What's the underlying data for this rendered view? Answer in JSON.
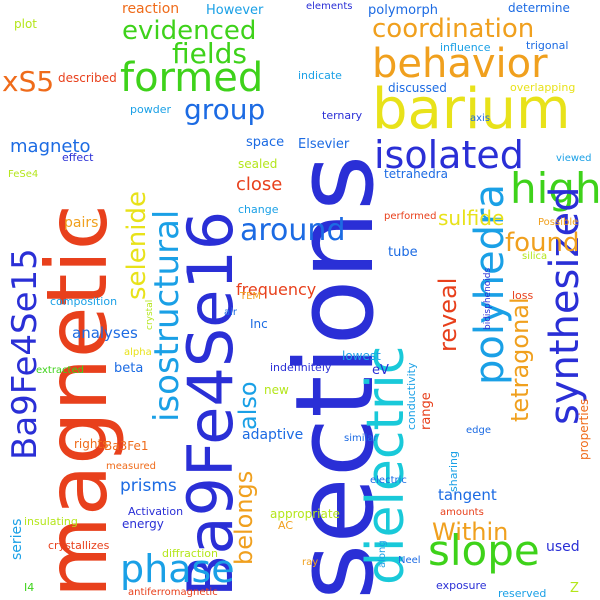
{
  "palette": {
    "red": "#e8401c",
    "orange": "#ef6b1a",
    "amber": "#f0a01e",
    "yellow": "#e8e21a",
    "lime": "#b4e61a",
    "green": "#3ed21a",
    "cyan": "#19c9d9",
    "sky": "#1aa0e6",
    "blue": "#1c6be3",
    "indigo": "#2a2fd6"
  },
  "words": [
    "sections",
    "magnetic",
    "Ba9Fe4Se16",
    "barium",
    "dielectric",
    "formed",
    "behavior",
    "isolated",
    "high",
    "evidenced",
    "coordination",
    "polyhedra",
    "synthesized",
    "slope",
    "Ba9Fe4Se15",
    "isostructural",
    "phase",
    "fields",
    "group",
    "xS5",
    "selenide",
    "around",
    "found",
    "tetragonal",
    "reveal",
    "also",
    "belongs",
    "Within",
    "sulfide",
    "magneto",
    "plot",
    "reaction",
    "However",
    "elements",
    "determine",
    "polymorph",
    "influence",
    "trigonal",
    "described",
    "discussed",
    "overlapping",
    "indicate",
    "axis",
    "powder",
    "ternary",
    "space",
    "Elsevier",
    "effect",
    "FeSe4",
    "viewed",
    "sealed",
    "close",
    "tetrahedra",
    "change",
    "frequency",
    "performed",
    "pairs",
    "Possible",
    "tube",
    "silica",
    "Inc",
    "air",
    "TEM",
    "bidisphenoids",
    "crystal",
    "loss",
    "composition",
    "analyses",
    "lowest",
    "alpha",
    "beta",
    "eV",
    "indefinitely",
    "conductivity",
    "range",
    "extracted",
    "adaptive",
    "new",
    "rights",
    "properties",
    "Ba3Fe1",
    "similar",
    "edge",
    "measured",
    "prisms",
    "sharing",
    "electric",
    "tangent",
    "series",
    "Activation",
    "energy",
    "insulating",
    "appropriate",
    "amounts",
    "used",
    "crystallizes",
    "AC",
    "diffraction",
    "along",
    "ray",
    "Neel",
    "exposure",
    "I4",
    "antiferromagnetic",
    "reserved",
    "Z"
  ]
}
